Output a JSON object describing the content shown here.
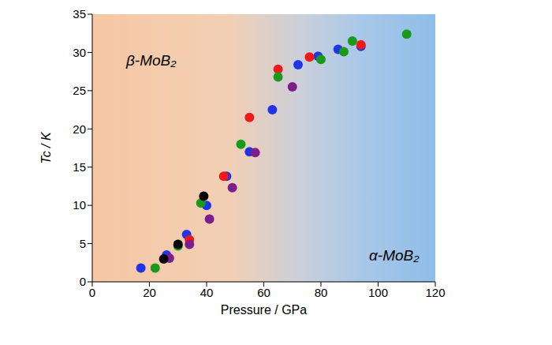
{
  "chart_data": {
    "type": "scatter",
    "x_label": "Pressure / GPa",
    "y_label": "Tc / K",
    "xlim": [
      0,
      120
    ],
    "xticks": [
      0,
      20,
      40,
      60,
      80,
      100,
      120
    ],
    "ylim": [
      0,
      35
    ],
    "yticks": [
      0,
      5,
      10,
      15,
      20,
      25,
      30,
      35
    ],
    "grid": false,
    "annotations": [
      "β-MoB₂",
      "α-MoB₂"
    ],
    "series": [
      {
        "color": "#2035e6",
        "marker": "circle",
        "x": [
          17,
          26,
          33,
          40,
          47,
          55,
          63,
          72,
          79,
          86,
          94
        ],
        "values": [
          1.8,
          3.5,
          6.2,
          10,
          13.8,
          17,
          22.5,
          28.4,
          29.5,
          30.4,
          30.8
        ]
      },
      {
        "color": "#f01818",
        "marker": "circle",
        "x": [
          34,
          46,
          55,
          65,
          76,
          94
        ],
        "values": [
          5.5,
          13.8,
          21.5,
          27.8,
          29.4,
          31
        ]
      },
      {
        "color": "#1a9a1a",
        "marker": "circle",
        "x": [
          22,
          30,
          38,
          52,
          65,
          80,
          88,
          91,
          110
        ],
        "values": [
          1.8,
          4.7,
          10.3,
          18,
          26.8,
          29.1,
          30.1,
          31.5,
          32.4
        ]
      },
      {
        "color": "#7d1f8a",
        "marker": "circle",
        "x": [
          27,
          34,
          41,
          49,
          57,
          70
        ],
        "values": [
          3.1,
          4.9,
          8.2,
          12.3,
          16.9,
          25.5
        ]
      },
      {
        "color": "#000000",
        "marker": "circle",
        "x": [
          25,
          30,
          39
        ],
        "values": [
          3,
          4.9,
          11.2
        ]
      }
    ]
  }
}
